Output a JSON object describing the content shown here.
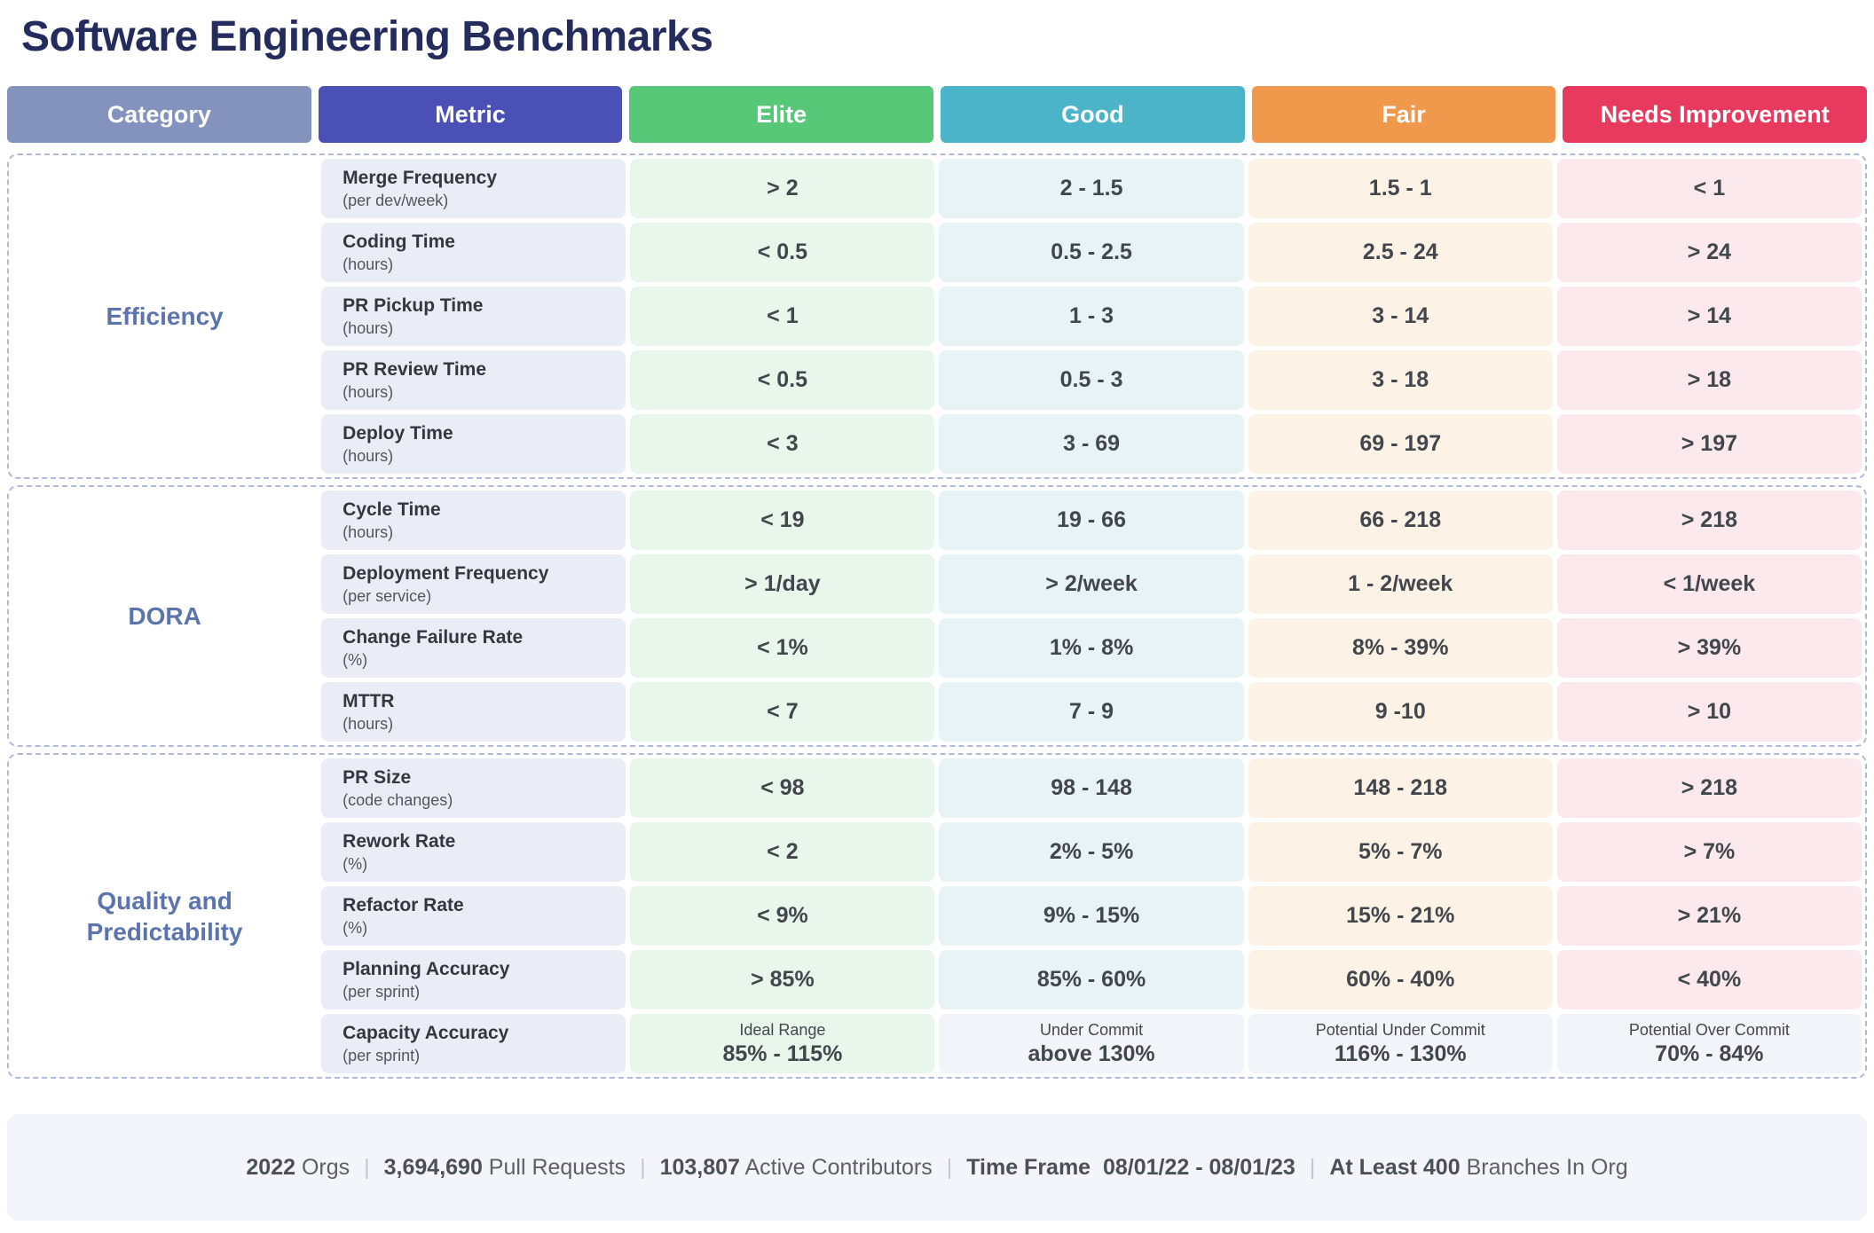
{
  "chart_data": {
    "type": "table",
    "title": "Software Engineering Benchmarks",
    "columns": [
      {
        "key": "category",
        "label": "Category",
        "color": "#8493bd"
      },
      {
        "key": "metric",
        "label": "Metric",
        "color": "#4a50b5"
      },
      {
        "key": "elite",
        "label": "Elite",
        "color": "#57c878"
      },
      {
        "key": "good",
        "label": "Good",
        "color": "#4bb4c9"
      },
      {
        "key": "fair",
        "label": "Fair",
        "color": "#f0984c"
      },
      {
        "key": "needs-improvement",
        "label": "Needs Improvement",
        "color": "#e83a5f"
      }
    ],
    "groups": [
      {
        "category": "Efficiency",
        "rows": [
          {
            "metric": "Merge Frequency",
            "unit": "(per dev/week)",
            "cells": [
              {
                "text": "> 2"
              },
              {
                "text": "2 - 1.5"
              },
              {
                "text": "1.5 - 1"
              },
              {
                "text": "< 1"
              }
            ]
          },
          {
            "metric": "Coding Time",
            "unit": "(hours)",
            "cells": [
              {
                "text": "< 0.5"
              },
              {
                "text": "0.5 - 2.5"
              },
              {
                "text": "2.5 - 24"
              },
              {
                "text": "> 24"
              }
            ]
          },
          {
            "metric": "PR Pickup Time",
            "unit": "(hours)",
            "cells": [
              {
                "text": "< 1"
              },
              {
                "text": "1 - 3"
              },
              {
                "text": "3 - 14"
              },
              {
                "text": "> 14"
              }
            ]
          },
          {
            "metric": "PR Review Time",
            "unit": "(hours)",
            "cells": [
              {
                "text": "< 0.5"
              },
              {
                "text": "0.5 - 3"
              },
              {
                "text": "3 - 18"
              },
              {
                "text": "> 18"
              }
            ]
          },
          {
            "metric": "Deploy Time",
            "unit": "(hours)",
            "cells": [
              {
                "text": "< 3"
              },
              {
                "text": "3 - 69"
              },
              {
                "text": "69 - 197"
              },
              {
                "text": "> 197"
              }
            ]
          }
        ]
      },
      {
        "category": "DORA",
        "rows": [
          {
            "metric": "Cycle Time",
            "unit": "(hours)",
            "cells": [
              {
                "text": "< 19"
              },
              {
                "text": "19 - 66"
              },
              {
                "text": "66 - 218"
              },
              {
                "text": "> 218"
              }
            ]
          },
          {
            "metric": "Deployment Frequency",
            "unit": "(per service)",
            "cells": [
              {
                "text": "> 1/day"
              },
              {
                "text": "> 2/week"
              },
              {
                "text": "1 - 2/week"
              },
              {
                "text": "< 1/week"
              }
            ]
          },
          {
            "metric": "Change Failure Rate",
            "unit": "(%)",
            "cells": [
              {
                "text": "< 1%"
              },
              {
                "text": "1% - 8%"
              },
              {
                "text": "8% - 39%"
              },
              {
                "text": "> 39%"
              }
            ]
          },
          {
            "metric": "MTTR",
            "unit": "(hours)",
            "cells": [
              {
                "text": "< 7"
              },
              {
                "text": "7 - 9"
              },
              {
                "text": "9 -10"
              },
              {
                "text": "> 10"
              }
            ]
          }
        ]
      },
      {
        "category": "Quality and Predictability",
        "rows": [
          {
            "metric": "PR Size",
            "unit": "(code changes)",
            "cells": [
              {
                "text": "< 98"
              },
              {
                "text": "98 - 148"
              },
              {
                "text": "148 - 218"
              },
              {
                "text": "> 218"
              }
            ]
          },
          {
            "metric": "Rework Rate",
            "unit": "(%)",
            "cells": [
              {
                "text": "< 2"
              },
              {
                "text": "2% - 5%"
              },
              {
                "text": "5% - 7%"
              },
              {
                "text": "> 7%"
              }
            ]
          },
          {
            "metric": "Refactor Rate",
            "unit": "(%)",
            "cells": [
              {
                "text": "< 9%"
              },
              {
                "text": "9% - 15%"
              },
              {
                "text": "15% - 21%"
              },
              {
                "text": "> 21%"
              }
            ]
          },
          {
            "metric": "Planning Accuracy",
            "unit": "(per sprint)",
            "cells": [
              {
                "text": "> 85%"
              },
              {
                "text": "85% - 60%"
              },
              {
                "text": "60% - 40%"
              },
              {
                "text": "< 40%"
              }
            ]
          },
          {
            "metric": "Capacity Accuracy",
            "unit": "(per sprint)",
            "cells": [
              {
                "label": "Ideal Range",
                "text": "85% - 115%"
              },
              {
                "label": "Under Commit",
                "text": "above 130%",
                "muted": true
              },
              {
                "label": "Potential Under Commit",
                "text": "116% - 130%",
                "muted": true
              },
              {
                "label": "Potential Over Commit",
                "text": "70% - 84%",
                "muted": true
              }
            ]
          }
        ]
      }
    ],
    "footer": {
      "segments": [
        {
          "bold": "2022",
          "text": " Orgs"
        },
        {
          "bold": "3,694,690",
          "text": " Pull Requests"
        },
        {
          "bold": "103,807",
          "text": " Active Contributors"
        },
        {
          "bold": "Time Frame  08/01/22 - 08/01/23",
          "text": ""
        },
        {
          "bold": "At Least 400",
          "text": " Branches In Org"
        }
      ]
    }
  },
  "colors": {
    "title": "#232c5d",
    "category_label": "#5b74ae",
    "group_border": "#b0bad8",
    "metric_cell_bg": "#eaecf6",
    "elite_cell_bg": "#e9f6ec",
    "good_cell_bg": "#e7f3f6",
    "fair_cell_bg": "#fdf2e6",
    "needs_improvement_cell_bg": "#fbe9ed",
    "muted_cell_bg": "#f3f3fa",
    "footer_bg": "#f4f4fb"
  }
}
